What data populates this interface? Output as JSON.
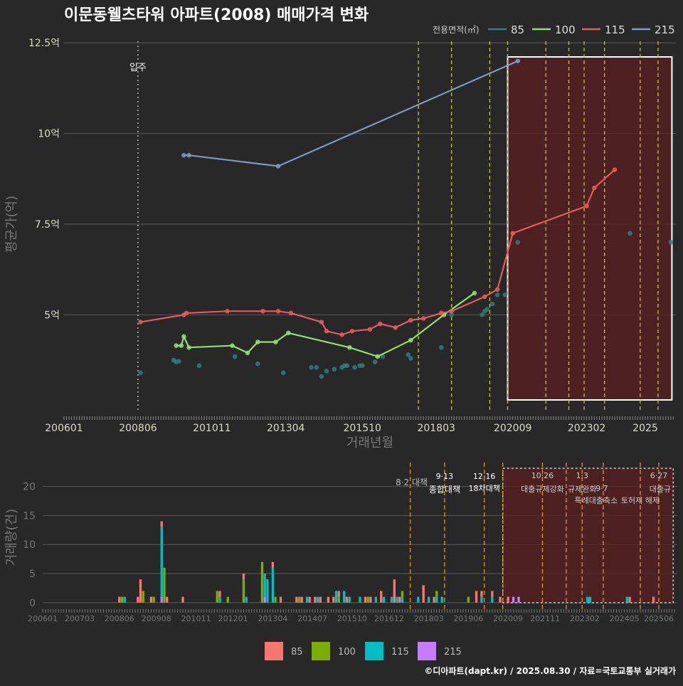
{
  "title": "이문동웰츠타워 아파트(2008) 매매가격 변화",
  "footer": "©디아파트(dapt.kr) / 2025.08.30 / 자료=국토교통부 실거래가",
  "chart_data": [
    {
      "type": "line",
      "title": "이문동웰츠타워 아파트(2008) 매매가격 변화",
      "xlabel": "거래년월",
      "ylabel": "평균가(억)",
      "x_ticks": [
        "200601",
        "200806",
        "201011",
        "201304",
        "201510",
        "201803",
        "202009",
        "202302",
        "2025"
      ],
      "y_ticks": [
        {
          "v": 5,
          "label": "5억"
        },
        {
          "v": 7.5,
          "label": "7.5억"
        },
        {
          "v": 10,
          "label": "10억"
        },
        {
          "v": 12.5,
          "label": "12.5억"
        }
      ],
      "xlim": [
        "2006-01",
        "2025-12"
      ],
      "ylim": [
        2.3,
        12.7
      ],
      "legend_title": "전용면적(㎡)",
      "legend_position": "top-right",
      "colors": {
        "85": "#2a7f7f",
        "100": "#90e070",
        "115": "#e85a5a",
        "215": "#7f98c0"
      },
      "series": [
        {
          "name": "85",
          "style": "points",
          "points": [
            [
              "2008-07",
              3.4
            ],
            [
              "2009-08",
              3.75
            ],
            [
              "2009-09",
              3.7
            ],
            [
              "2009-10",
              3.72
            ],
            [
              "2010-06",
              3.6
            ],
            [
              "2011-08",
              3.85
            ],
            [
              "2012-05",
              3.65
            ],
            [
              "2013-03",
              3.4
            ],
            [
              "2014-02",
              3.55
            ],
            [
              "2014-04",
              3.55
            ],
            [
              "2014-06",
              3.3
            ],
            [
              "2014-08",
              3.45
            ],
            [
              "2014-11",
              3.5
            ],
            [
              "2015-02",
              3.55
            ],
            [
              "2015-03",
              3.6
            ],
            [
              "2015-04",
              3.6
            ],
            [
              "2015-07",
              3.55
            ],
            [
              "2015-09",
              3.6
            ],
            [
              "2015-10",
              3.6
            ],
            [
              "2016-03",
              3.7
            ],
            [
              "2016-06",
              3.85
            ],
            [
              "2017-04",
              3.9
            ],
            [
              "2017-05",
              3.8
            ],
            [
              "2018-05",
              4.1
            ],
            [
              "2018-09",
              5.0
            ],
            [
              "2019-09",
              5.0
            ],
            [
              "2019-10",
              5.1
            ],
            [
              "2019-11",
              5.15
            ],
            [
              "2020-01",
              5.3
            ],
            [
              "2020-03",
              5.55
            ],
            [
              "2020-06",
              5.55
            ],
            [
              "2020-11",
              7.0
            ],
            [
              "2024-07",
              7.25
            ],
            [
              "2025-11",
              7.0
            ]
          ]
        },
        {
          "name": "100",
          "style": "line",
          "points": [
            [
              "2009-09",
              4.15
            ],
            [
              "2009-11",
              4.15
            ],
            [
              "2009-12",
              4.4
            ],
            [
              "2010-02",
              4.1
            ],
            [
              "2011-07",
              4.15
            ],
            [
              "2012-01",
              3.95
            ],
            [
              "2012-05",
              4.25
            ],
            [
              "2012-12",
              4.25
            ],
            [
              "2013-05",
              4.5
            ],
            [
              "2015-05",
              4.1
            ],
            [
              "2016-04",
              3.85
            ],
            [
              "2017-05",
              4.3
            ],
            [
              "2018-06",
              5.0
            ],
            [
              "2019-06",
              5.6
            ]
          ]
        },
        {
          "name": "115",
          "style": "line",
          "points": [
            [
              "2008-07",
              4.8
            ],
            [
              "2009-12",
              5.0
            ],
            [
              "2010-01",
              5.05
            ],
            [
              "2011-05",
              5.1
            ],
            [
              "2012-07",
              5.1
            ],
            [
              "2013-01",
              5.1
            ],
            [
              "2013-06",
              5.05
            ],
            [
              "2014-06",
              4.8
            ],
            [
              "2014-08",
              4.55
            ],
            [
              "2015-02",
              4.45
            ],
            [
              "2015-06",
              4.55
            ],
            [
              "2016-01",
              4.6
            ],
            [
              "2016-05",
              4.75
            ],
            [
              "2016-11",
              4.65
            ],
            [
              "2017-05",
              4.85
            ],
            [
              "2017-10",
              4.9
            ],
            [
              "2018-05",
              5.05
            ],
            [
              "2018-09",
              5.1
            ],
            [
              "2019-10",
              5.5
            ],
            [
              "2020-03",
              5.7
            ],
            [
              "2020-09",
              7.25
            ],
            [
              "2023-02",
              8.0
            ],
            [
              "2023-05",
              8.5
            ],
            [
              "2024-01",
              9.0
            ]
          ]
        },
        {
          "name": "215",
          "style": "line",
          "points": [
            [
              "2009-12",
              9.4
            ],
            [
              "2010-02",
              9.4
            ],
            [
              "2013-01",
              9.1
            ],
            [
              "2020-11",
              12.0
            ]
          ]
        }
      ],
      "annotations": [
        {
          "label": "입주",
          "at": "2008-06"
        }
      ],
      "policy_lines": [
        "2017-08",
        "2018-09",
        "2019-12",
        "2020-07",
        "2021-10",
        "2022-07",
        "2023-01",
        "2023-09",
        "2024-11",
        "2025-06"
      ],
      "highlight_range": [
        "2020-07",
        "2025-12"
      ]
    },
    {
      "type": "bar",
      "title": "",
      "xlabel": "",
      "ylabel": "거래량(건)",
      "x_ticks": [
        "200601",
        "200703",
        "200806",
        "200908",
        "201011",
        "201201",
        "201304",
        "201407",
        "201510",
        "201612",
        "201803",
        "201906",
        "202009",
        "202111",
        "202302",
        "202405",
        "202506"
      ],
      "y_ticks": [
        0,
        5,
        10,
        15,
        20
      ],
      "ylim": [
        -1,
        23.5
      ],
      "legend_entries": [
        "85",
        "100",
        "115",
        "215"
      ],
      "colors": {
        "85": "#f8766d",
        "100": "#7cae00",
        "115": "#00bfc4",
        "215": "#c77cff"
      },
      "series": [
        {
          "name": "85",
          "counts": [
            [
              "2008-06",
              1
            ],
            [
              "2009-01",
              1
            ],
            [
              "2009-02",
              4
            ],
            [
              "2009-06",
              1
            ],
            [
              "2009-10",
              1
            ],
            [
              "2009-12",
              1
            ],
            [
              "2010-06",
              1
            ],
            [
              "2011-08",
              1
            ],
            [
              "2012-05",
              1
            ],
            [
              "2013-04",
              1
            ],
            [
              "2013-07",
              1
            ],
            [
              "2014-01",
              1
            ],
            [
              "2014-03",
              1
            ],
            [
              "2014-06",
              1
            ],
            [
              "2014-08",
              1
            ],
            [
              "2014-10",
              1
            ],
            [
              "2015-01",
              1
            ],
            [
              "2015-03",
              1
            ],
            [
              "2015-05",
              1
            ],
            [
              "2015-08",
              1
            ],
            [
              "2016-03",
              1
            ],
            [
              "2016-05",
              1
            ],
            [
              "2016-09",
              2
            ],
            [
              "2017-02",
              4
            ],
            [
              "2017-04",
              1
            ],
            [
              "2018-01",
              3
            ],
            [
              "2018-05",
              1
            ],
            [
              "2019-09",
              2
            ],
            [
              "2019-11",
              1
            ],
            [
              "2020-03",
              1
            ],
            [
              "2020-06",
              1
            ],
            [
              "2020-09",
              1
            ],
            [
              "2024-07",
              1
            ],
            [
              "2025-04",
              1
            ]
          ]
        },
        {
          "name": "100",
          "counts": [
            [
              "2008-07",
              1
            ],
            [
              "2009-03",
              2
            ],
            [
              "2009-07",
              1
            ],
            [
              "2009-11",
              6
            ],
            [
              "2011-07",
              2
            ],
            [
              "2011-11",
              1
            ],
            [
              "2012-05",
              4
            ],
            [
              "2012-12",
              7
            ],
            [
              "2013-05",
              1
            ],
            [
              "2014-02",
              1
            ],
            [
              "2015-05",
              1
            ],
            [
              "2016-04",
              1
            ],
            [
              "2017-05",
              1
            ],
            [
              "2018-06",
              1
            ],
            [
              "2019-06",
              1
            ]
          ]
        },
        {
          "name": "115",
          "counts": [
            [
              "2008-08",
              1
            ],
            [
              "2009-10",
              12
            ],
            [
              "2011-08",
              1
            ],
            [
              "2012-06",
              1
            ],
            [
              "2013-01",
              4
            ],
            [
              "2013-02",
              4
            ],
            [
              "2013-04",
              6
            ],
            [
              "2014-05",
              1
            ],
            [
              "2014-09",
              1
            ],
            [
              "2015-04",
              2
            ],
            [
              "2015-07",
              2
            ],
            [
              "2015-09",
              1
            ],
            [
              "2016-01",
              1
            ],
            [
              "2016-07",
              1
            ],
            [
              "2016-10",
              1
            ],
            [
              "2017-01",
              1
            ],
            [
              "2017-03",
              1
            ],
            [
              "2017-05",
              1
            ],
            [
              "2017-11",
              1
            ],
            [
              "2018-03",
              1
            ],
            [
              "2018-06",
              1
            ],
            [
              "2018-08",
              1
            ],
            [
              "2019-11",
              1
            ],
            [
              "2020-03",
              1
            ],
            [
              "2023-03",
              1
            ],
            [
              "2023-04",
              1
            ],
            [
              "2024-06",
              1
            ]
          ]
        },
        {
          "name": "215",
          "counts": [
            [
              "2009-10",
              1
            ],
            [
              "2013-01",
              1
            ],
            [
              "2020-11",
              1
            ],
            [
              "2021-01",
              1
            ]
          ]
        }
      ],
      "policy_lines": [
        {
          "at": "2017-08",
          "label": "8·2 대책"
        },
        {
          "at": "2018-09",
          "label": "9·13\n종합대책"
        },
        {
          "at": "2019-12",
          "label": "12·16\n18차대책"
        },
        {
          "at": "2020-07",
          "label": ""
        },
        {
          "at": "2021-10",
          "label": "10·26\n대출규제강화"
        },
        {
          "at": "2022-07",
          "label": ""
        },
        {
          "at": "2023-01",
          "label": "1·3\n규제완화"
        },
        {
          "at": "2023-09",
          "label": "9·7\n특례대출축소"
        },
        {
          "at": "2024-11",
          "label": "토허제 해제"
        },
        {
          "at": "2025-06",
          "label": "6·27\n대출규"
        }
      ],
      "highlight_range": [
        "2020-07",
        "2025-12"
      ]
    }
  ]
}
